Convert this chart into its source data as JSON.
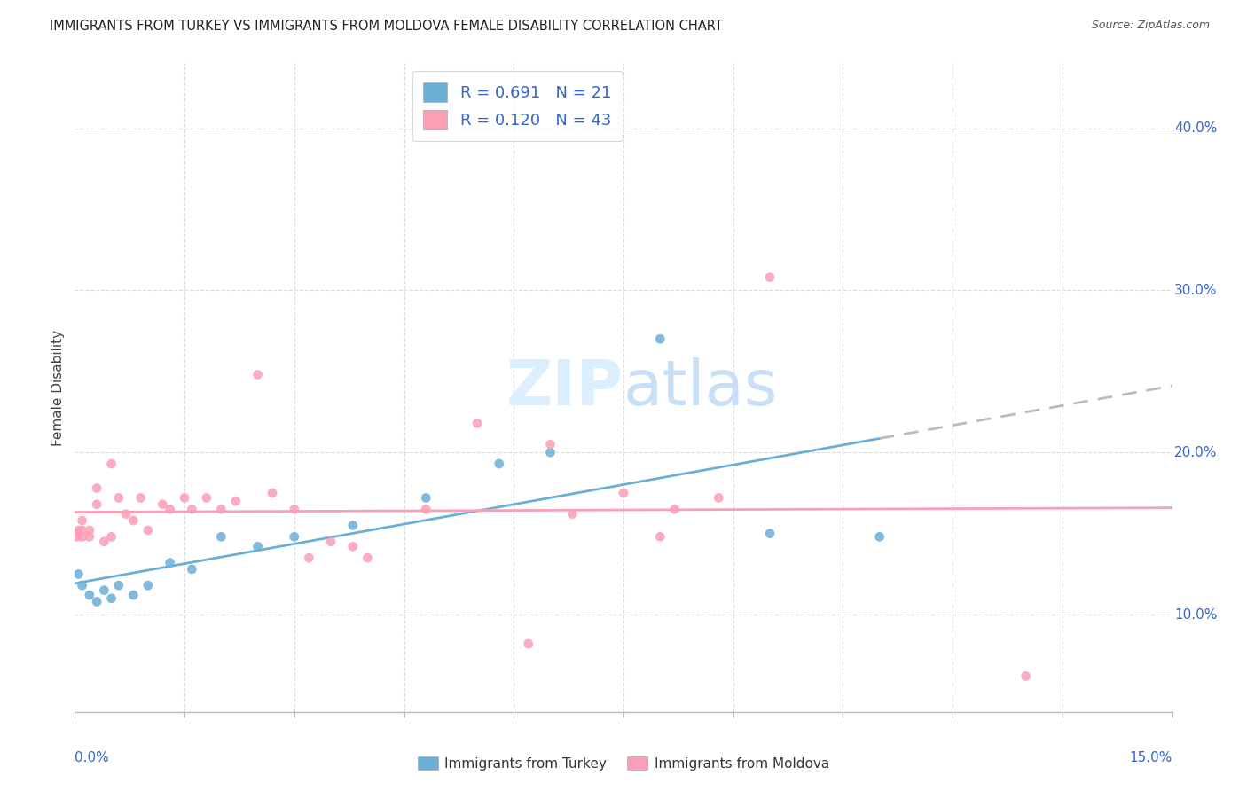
{
  "title": "IMMIGRANTS FROM TURKEY VS IMMIGRANTS FROM MOLDOVA FEMALE DISABILITY CORRELATION CHART",
  "source": "Source: ZipAtlas.com",
  "ylabel": "Female Disability",
  "ytick_vals": [
    0.1,
    0.2,
    0.3,
    0.4
  ],
  "ytick_labels": [
    "10.0%",
    "20.0%",
    "30.0%",
    "40.0%"
  ],
  "xlim": [
    0.0,
    0.15
  ],
  "ylim": [
    0.04,
    0.44
  ],
  "turkey_color": "#6baed6",
  "moldova_color": "#fa9fb5",
  "turkey_R": 0.691,
  "turkey_N": 21,
  "moldova_R": 0.12,
  "moldova_N": 43,
  "turkey_x": [
    0.0005,
    0.001,
    0.002,
    0.003,
    0.004,
    0.005,
    0.006,
    0.008,
    0.01,
    0.013,
    0.016,
    0.02,
    0.025,
    0.03,
    0.038,
    0.048,
    0.058,
    0.065,
    0.08,
    0.095,
    0.11
  ],
  "turkey_y": [
    0.125,
    0.118,
    0.112,
    0.108,
    0.115,
    0.11,
    0.118,
    0.112,
    0.118,
    0.132,
    0.128,
    0.148,
    0.142,
    0.148,
    0.155,
    0.172,
    0.193,
    0.2,
    0.27,
    0.15,
    0.148
  ],
  "moldova_x": [
    0.0003,
    0.0004,
    0.0005,
    0.001,
    0.001,
    0.001,
    0.002,
    0.002,
    0.003,
    0.003,
    0.004,
    0.005,
    0.005,
    0.006,
    0.007,
    0.008,
    0.009,
    0.01,
    0.012,
    0.013,
    0.015,
    0.016,
    0.018,
    0.02,
    0.022,
    0.025,
    0.027,
    0.03,
    0.032,
    0.035,
    0.038,
    0.04,
    0.048,
    0.055,
    0.062,
    0.065,
    0.068,
    0.075,
    0.08,
    0.082,
    0.088,
    0.095,
    0.13
  ],
  "moldova_y": [
    0.148,
    0.15,
    0.152,
    0.148,
    0.152,
    0.158,
    0.148,
    0.152,
    0.178,
    0.168,
    0.145,
    0.193,
    0.148,
    0.172,
    0.162,
    0.158,
    0.172,
    0.152,
    0.168,
    0.165,
    0.172,
    0.165,
    0.172,
    0.165,
    0.17,
    0.248,
    0.175,
    0.165,
    0.135,
    0.145,
    0.142,
    0.135,
    0.165,
    0.218,
    0.082,
    0.205,
    0.162,
    0.175,
    0.148,
    0.165,
    0.172,
    0.308,
    0.062
  ],
  "background_color": "#ffffff",
  "grid_color": "#dddddd",
  "watermark_color": "#ddeeff",
  "legend_color": "#3366cc",
  "dashed_color": "#bbbbbb"
}
